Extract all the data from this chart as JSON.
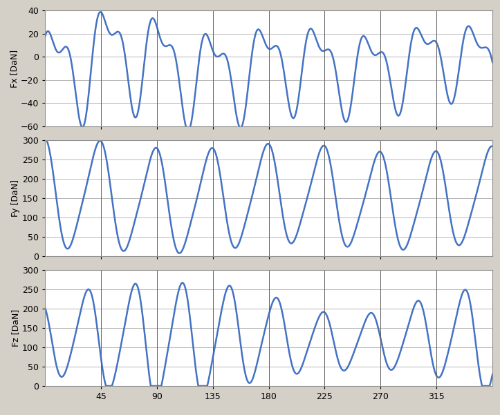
{
  "x_range": [
    0,
    360
  ],
  "x_ticks": [
    45,
    90,
    135,
    180,
    225,
    270,
    315
  ],
  "vline_positions": [
    45,
    90,
    135,
    180,
    225,
    270,
    315
  ],
  "panels": [
    {
      "ylabel": "Fx [DaN]",
      "ylim": [
        -60,
        40
      ],
      "yticks": [
        -60,
        -40,
        -20,
        0,
        20,
        40
      ]
    },
    {
      "ylabel": "Fy [DaN]",
      "ylim": [
        0,
        300
      ],
      "yticks": [
        0,
        50,
        100,
        150,
        200,
        250,
        300
      ]
    },
    {
      "ylabel": "Fz [DaN]",
      "ylim": [
        0,
        300
      ],
      "yticks": [
        0,
        50,
        100,
        150,
        200,
        250,
        300
      ]
    }
  ],
  "line_color": "#4472C4",
  "line_width": 1.8,
  "bg_color": "#D4D0C8",
  "plot_bg_color": "#FFFFFF",
  "grid_color": "#A8A8A8",
  "vline_color": "#606060",
  "tick_fontsize": 9,
  "ylabel_fontsize": 9
}
